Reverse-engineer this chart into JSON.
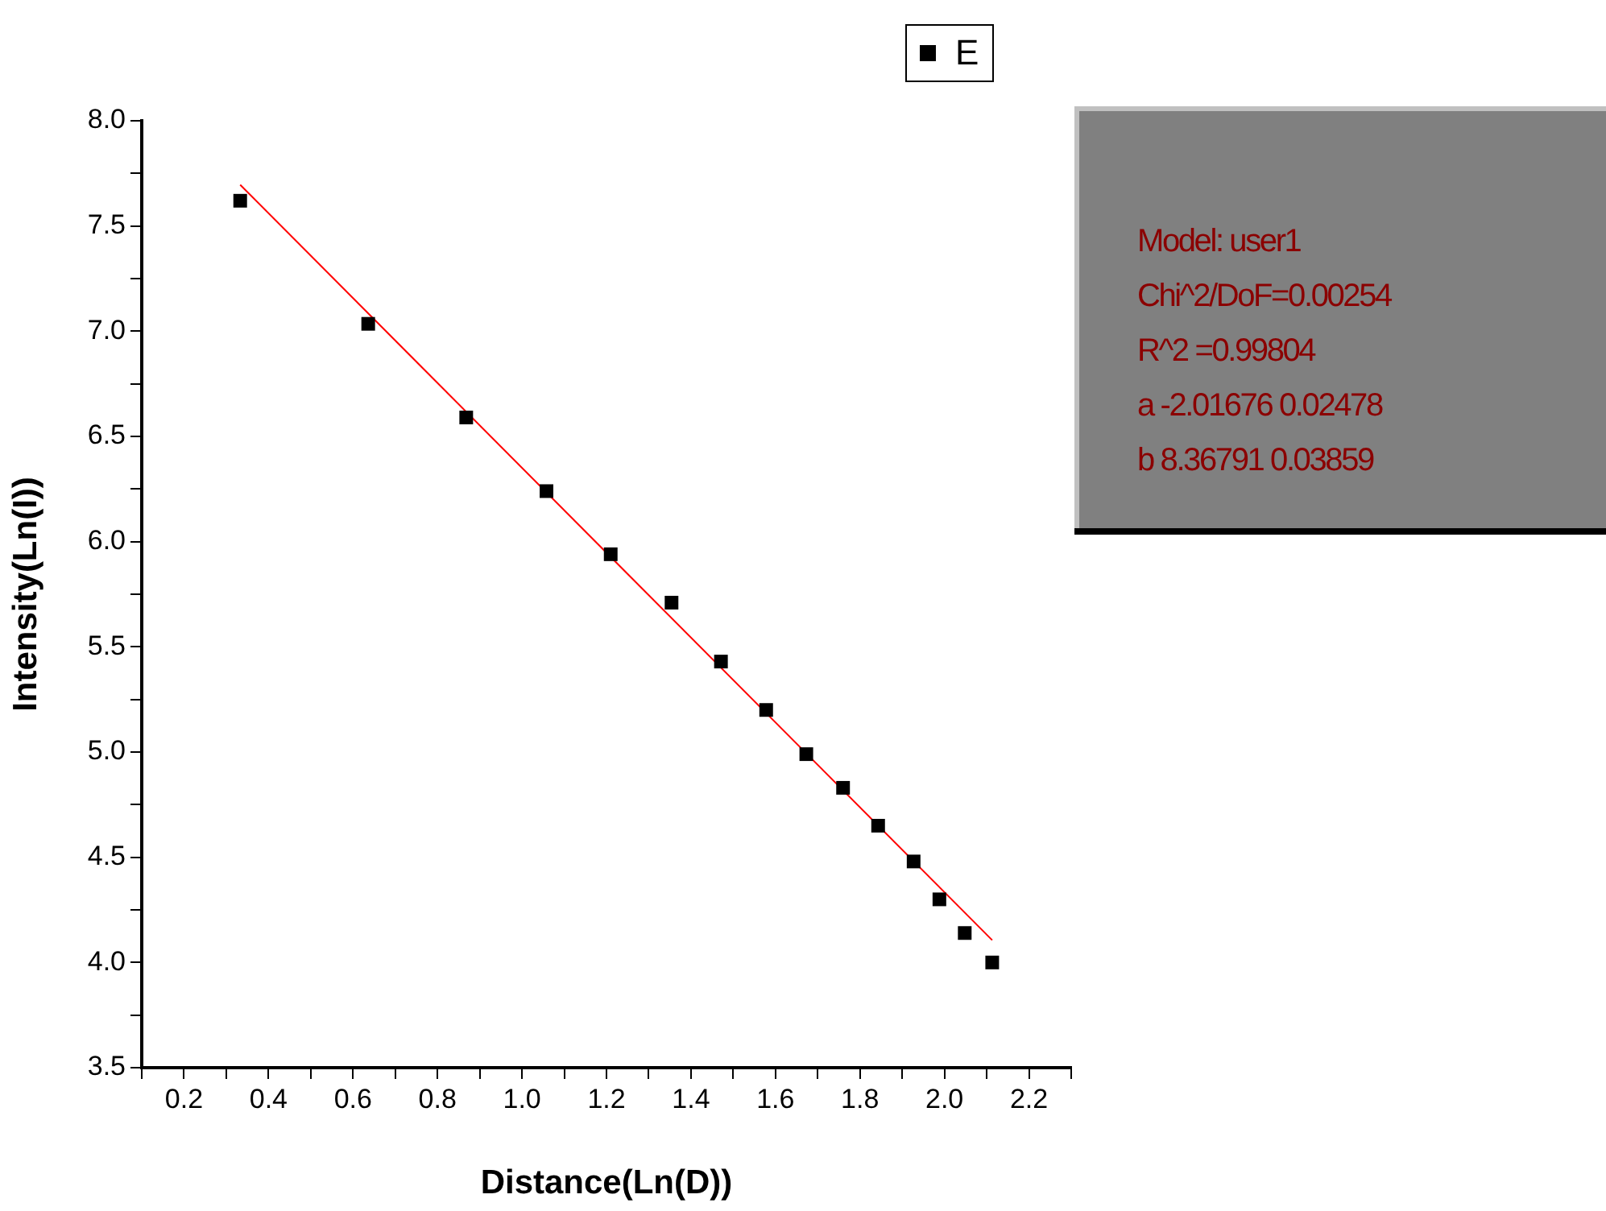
{
  "chart_data": {
    "type": "scatter",
    "xlabel": "Distance(Ln(D))",
    "ylabel": "Intensity(Ln(I))",
    "series": [
      {
        "name": "E",
        "color": "#000000",
        "marker": "square",
        "x": [
          0.333,
          0.636,
          0.868,
          1.058,
          1.21,
          1.354,
          1.471,
          1.578,
          1.673,
          1.76,
          1.843,
          1.927,
          1.988,
          2.048,
          2.113
        ],
        "values": [
          7.62,
          7.035,
          6.59,
          6.24,
          5.94,
          5.71,
          5.43,
          5.2,
          4.99,
          4.83,
          4.65,
          4.48,
          4.3,
          4.14,
          4.0
        ]
      },
      {
        "type": "line",
        "color": "#ff0000",
        "marker": "none",
        "x": [
          0.333,
          2.113
        ],
        "values": [
          7.696,
          4.106
        ]
      }
    ],
    "xlim": [
      0.1,
      2.3
    ],
    "ylim": [
      3.5,
      8.0
    ],
    "xticks": [
      {
        "value": 0.1,
        "label": null
      },
      0.2,
      {
        "value": 0.3,
        "label": null
      },
      0.4,
      {
        "value": 0.5,
        "label": null
      },
      0.6,
      {
        "value": 0.7,
        "label": null
      },
      0.8,
      {
        "value": 0.9,
        "label": null
      },
      {
        "value": 1.0,
        "label": "1.0"
      },
      {
        "value": 1.1,
        "label": null
      },
      1.2,
      {
        "value": 1.3,
        "label": null
      },
      1.4,
      {
        "value": 1.5,
        "label": null
      },
      1.6,
      {
        "value": 1.7,
        "label": null
      },
      1.8,
      {
        "value": 1.9,
        "label": null
      },
      {
        "value": 2.0,
        "label": "2.0"
      },
      {
        "value": 2.1,
        "label": null
      },
      2.2,
      {
        "value": 2.3,
        "label": null
      }
    ],
    "yticks": [
      3.5,
      {
        "value": 3.75,
        "label": null
      },
      {
        "value": 4.0,
        "label": "4.0"
      },
      {
        "value": 4.25,
        "label": null
      },
      4.5,
      {
        "value": 4.75,
        "label": null
      },
      {
        "value": 5.0,
        "label": "5.0"
      },
      {
        "value": 5.25,
        "label": null
      },
      5.5,
      {
        "value": 5.75,
        "label": null
      },
      {
        "value": 6.0,
        "label": "6.0"
      },
      {
        "value": 6.25,
        "label": null
      },
      6.5,
      {
        "value": 6.75,
        "label": null
      },
      {
        "value": 7.0,
        "label": "7.0"
      },
      {
        "value": 7.25,
        "label": null
      },
      7.5,
      {
        "value": 7.75,
        "label": null
      },
      {
        "value": 8.0,
        "label": "8.0"
      }
    ],
    "grid": false,
    "legend": "top right",
    "annotations": [
      "Model: user1",
      "Chi^2/DoF=0.00254",
      "R^2 =0.99804",
      "a -2.01676 0.02478",
      "b 8.36791 0.03859"
    ]
  }
}
